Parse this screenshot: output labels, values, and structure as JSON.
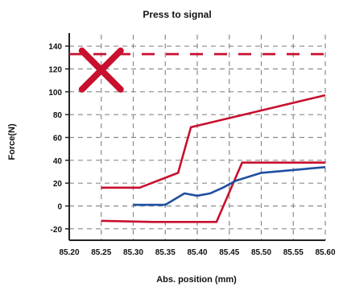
{
  "chart_data": {
    "type": "line",
    "title": "Press to signal",
    "xlabel": "Abs. position (mm)",
    "ylabel": "Force(N)",
    "xlim": [
      85.2,
      85.6
    ],
    "ylim": [
      -30,
      150
    ],
    "xticks": [
      "85.20",
      "85.25",
      "85.30",
      "85.35",
      "85.40",
      "85.45",
      "85.50",
      "85.55",
      "85.60"
    ],
    "yticks": [
      "140",
      "120",
      "100",
      "80",
      "60",
      "40",
      "20",
      "0",
      "-20"
    ],
    "grid": true,
    "series": [
      {
        "color": "#c8102e",
        "style": "dashed",
        "x": [
          85.2,
          85.6
        ],
        "y": [
          133,
          133
        ]
      },
      {
        "color": "#c8102e",
        "style": "solid",
        "x": [
          85.25,
          85.31,
          85.37,
          85.39,
          85.6
        ],
        "y": [
          16,
          16,
          29,
          69,
          97
        ]
      },
      {
        "color": "#c8102e",
        "style": "solid",
        "x": [
          85.25,
          85.33,
          85.43,
          85.47,
          85.6
        ],
        "y": [
          -13,
          -14,
          -14,
          38,
          38
        ]
      },
      {
        "color": "#1f4fa0",
        "style": "solid",
        "x": [
          85.3,
          85.35,
          85.38,
          85.4,
          85.42,
          85.44,
          85.46,
          85.5,
          85.6
        ],
        "y": [
          1,
          1,
          11,
          9,
          11,
          16,
          22,
          29,
          34
        ]
      }
    ],
    "marker": {
      "type": "cross",
      "color": "#c8102e",
      "x": 85.25,
      "y": 119
    }
  }
}
